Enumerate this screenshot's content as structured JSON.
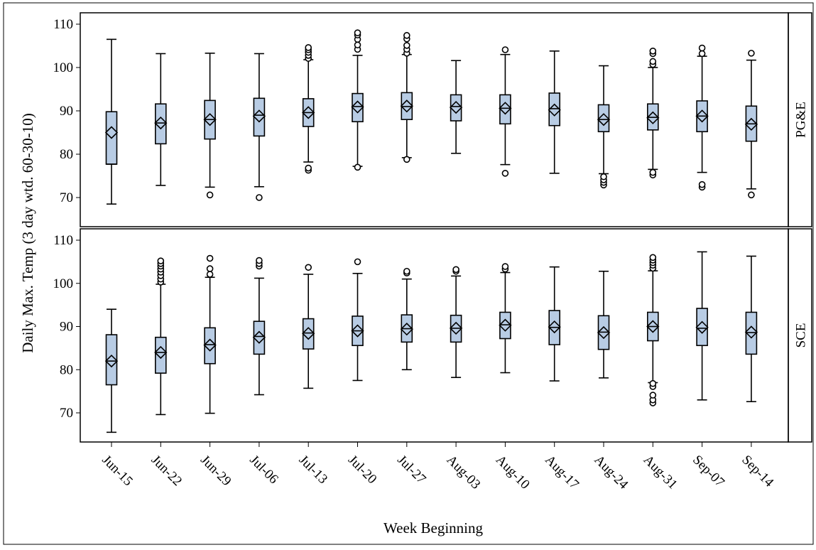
{
  "chart_data": {
    "type": "box",
    "xlabel": "Week Beginning",
    "ylabel": "Daily Max. Temp (3 day wtd. 60-30-10)",
    "categories": [
      "Jun-15",
      "Jun-22",
      "Jun-29",
      "Jul-06",
      "Jul-13",
      "Jul-20",
      "Jul-27",
      "Aug-03",
      "Aug-10",
      "Aug-17",
      "Aug-24",
      "Aug-31",
      "Sep-07",
      "Sep-14"
    ],
    "ylim": [
      65,
      112
    ],
    "yticks": [
      "70",
      "80",
      "90",
      "100",
      "110"
    ],
    "colors": {
      "box_fill": "#b8cce4",
      "line": "#000000"
    },
    "panels": [
      {
        "label": "PG&E",
        "boxes": [
          {
            "low": 68.5,
            "q1": 77.7,
            "median": 77.7,
            "q3": 89.8,
            "high": 106.5,
            "mean": 85.0,
            "outliers": []
          },
          {
            "low": 72.8,
            "q1": 82.4,
            "median": 87.2,
            "q3": 91.6,
            "high": 103.2,
            "mean": 87.2,
            "outliers": []
          },
          {
            "low": 72.4,
            "q1": 83.5,
            "median": 88.0,
            "q3": 92.4,
            "high": 103.3,
            "mean": 88.0,
            "outliers": [
              70.6
            ]
          },
          {
            "low": 72.5,
            "q1": 84.2,
            "median": 89.0,
            "q3": 92.9,
            "high": 103.2,
            "mean": 88.8,
            "outliers": [
              70.0
            ]
          },
          {
            "low": 78.2,
            "q1": 86.4,
            "median": 89.6,
            "q3": 92.8,
            "high": 101.8,
            "mean": 89.6,
            "outliers": [
              76.3,
              76.8,
              102.1,
              102.8,
              103.5,
              104.1,
              104.6
            ]
          },
          {
            "low": 77.2,
            "q1": 87.5,
            "median": 91.0,
            "q3": 94.0,
            "high": 102.8,
            "mean": 90.9,
            "outliers": [
              77.0,
              104.2,
              105.2,
              106.5,
              107.5,
              108.0
            ]
          },
          {
            "low": 79.2,
            "q1": 88.0,
            "median": 91.0,
            "q3": 94.2,
            "high": 103.0,
            "mean": 91.1,
            "outliers": [
              78.8,
              103.3,
              104.2,
              105.1,
              106.6,
              107.4
            ]
          },
          {
            "low": 80.2,
            "q1": 87.7,
            "median": 91.0,
            "q3": 93.7,
            "high": 101.6,
            "mean": 90.8,
            "outliers": []
          },
          {
            "low": 77.6,
            "q1": 87.0,
            "median": 90.6,
            "q3": 93.7,
            "high": 103.0,
            "mean": 90.6,
            "outliers": [
              75.6,
              104.1
            ]
          },
          {
            "low": 75.6,
            "q1": 86.6,
            "median": 90.5,
            "q3": 94.1,
            "high": 103.8,
            "mean": 90.2,
            "outliers": []
          },
          {
            "low": 75.5,
            "q1": 85.2,
            "median": 88.0,
            "q3": 91.4,
            "high": 100.4,
            "mean": 88.0,
            "outliers": [
              72.9,
              73.5,
              74.1,
              74.8
            ]
          },
          {
            "low": 76.5,
            "q1": 85.6,
            "median": 88.5,
            "q3": 91.6,
            "high": 100.0,
            "mean": 88.4,
            "outliers": [
              75.2,
              75.8,
              100.7,
              101.4,
              103.2,
              103.8
            ]
          },
          {
            "low": 75.8,
            "q1": 85.2,
            "median": 88.8,
            "q3": 92.3,
            "high": 102.6,
            "mean": 88.8,
            "outliers": [
              72.4,
              73.0,
              103.2,
              104.5
            ]
          },
          {
            "low": 72.0,
            "q1": 83.0,
            "median": 87.0,
            "q3": 91.1,
            "high": 101.7,
            "mean": 86.9,
            "outliers": [
              70.6,
              103.3
            ]
          }
        ]
      },
      {
        "label": "SCE",
        "boxes": [
          {
            "low": 65.5,
            "q1": 76.5,
            "median": 82.0,
            "q3": 88.1,
            "high": 94.0,
            "mean": 82.0,
            "outliers": []
          },
          {
            "low": 69.6,
            "q1": 79.2,
            "median": 84.0,
            "q3": 87.5,
            "high": 99.8,
            "mean": 84.0,
            "outliers": [
              100.3,
              101.0,
              101.8,
              102.6,
              103.3,
              104.0,
              104.6,
              105.2
            ]
          },
          {
            "low": 69.9,
            "q1": 81.4,
            "median": 85.8,
            "q3": 89.7,
            "high": 101.4,
            "mean": 85.7,
            "outliers": [
              102.1,
              103.4,
              105.8
            ]
          },
          {
            "low": 74.2,
            "q1": 83.6,
            "median": 87.7,
            "q3": 91.2,
            "high": 101.2,
            "mean": 87.5,
            "outliers": [
              104.0,
              104.6,
              105.3
            ]
          },
          {
            "low": 75.7,
            "q1": 84.8,
            "median": 88.5,
            "q3": 91.8,
            "high": 102.1,
            "mean": 88.4,
            "outliers": [
              103.7
            ]
          },
          {
            "low": 77.5,
            "q1": 85.6,
            "median": 89.0,
            "q3": 92.4,
            "high": 102.3,
            "mean": 89.0,
            "outliers": [
              105.0
            ]
          },
          {
            "low": 80.0,
            "q1": 86.4,
            "median": 89.5,
            "q3": 92.7,
            "high": 101.0,
            "mean": 89.4,
            "outliers": [
              102.4,
              102.8
            ]
          },
          {
            "low": 78.2,
            "q1": 86.4,
            "median": 89.6,
            "q3": 92.6,
            "high": 101.7,
            "mean": 89.6,
            "outliers": [
              102.8,
              103.2
            ]
          },
          {
            "low": 79.3,
            "q1": 87.2,
            "median": 90.4,
            "q3": 93.3,
            "high": 102.5,
            "mean": 90.3,
            "outliers": [
              103.3,
              103.9
            ]
          },
          {
            "low": 77.4,
            "q1": 85.8,
            "median": 89.8,
            "q3": 93.7,
            "high": 103.8,
            "mean": 89.9,
            "outliers": []
          },
          {
            "low": 78.1,
            "q1": 84.7,
            "median": 88.7,
            "q3": 92.5,
            "high": 102.8,
            "mean": 88.6,
            "outliers": []
          },
          {
            "low": 77.0,
            "q1": 86.7,
            "median": 90.0,
            "q3": 93.3,
            "high": 102.9,
            "mean": 90.0,
            "outliers": [
              72.3,
              73.0,
              74.1,
              76.1,
              76.8,
              103.5,
              104.2,
              104.8,
              105.4,
              106.0
            ]
          },
          {
            "low": 73.0,
            "q1": 85.6,
            "median": 89.6,
            "q3": 94.2,
            "high": 107.3,
            "mean": 89.8,
            "outliers": []
          },
          {
            "low": 72.6,
            "q1": 83.6,
            "median": 88.6,
            "q3": 93.3,
            "high": 106.3,
            "mean": 88.7,
            "outliers": []
          }
        ]
      }
    ]
  }
}
